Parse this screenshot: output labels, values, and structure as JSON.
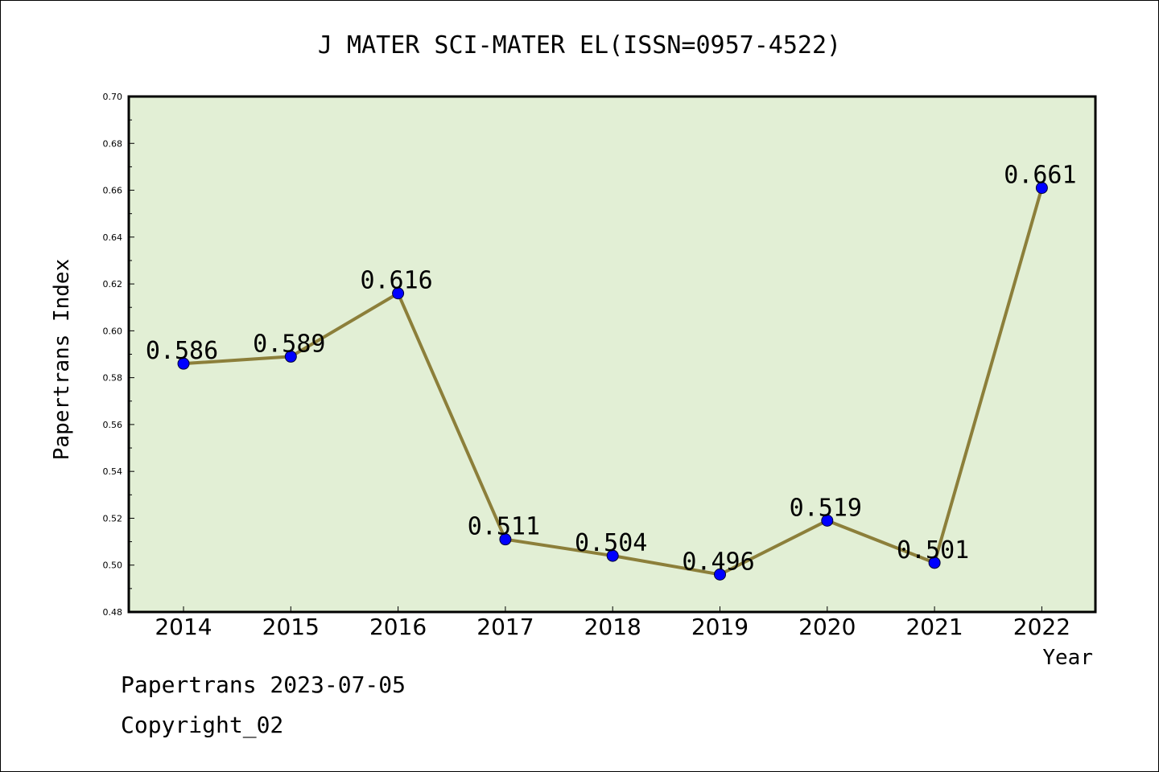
{
  "chart_data": {
    "type": "line",
    "title": "J MATER SCI-MATER EL(ISSN=0957-4522)",
    "xlabel": "Year",
    "ylabel": "Papertrans Index",
    "categories": [
      "2014",
      "2015",
      "2016",
      "2017",
      "2018",
      "2019",
      "2020",
      "2021",
      "2022"
    ],
    "series": [
      {
        "values": [
          0.586,
          0.589,
          0.616,
          0.511,
          0.504,
          0.496,
          0.519,
          0.501,
          0.661
        ],
        "labels": [
          "0.586",
          "0.589",
          "0.616",
          "0.511",
          "0.504",
          "0.496",
          "0.519",
          "0.501",
          "0.661"
        ]
      }
    ],
    "ylim": [
      0.48,
      0.7
    ],
    "yticks": [
      "0.48",
      "0.50",
      "0.52",
      "0.54",
      "0.56",
      "0.58",
      "0.60",
      "0.62",
      "0.64",
      "0.66",
      "0.68",
      "0.70"
    ],
    "grid": false,
    "legend": "none",
    "colors": {
      "plot_background": "#e2efd5",
      "line": "#8c7f3a",
      "marker": "#0000ff"
    }
  },
  "footer": {
    "line1": "Papertrans 2023-07-05",
    "line2": "Copyright_02"
  }
}
